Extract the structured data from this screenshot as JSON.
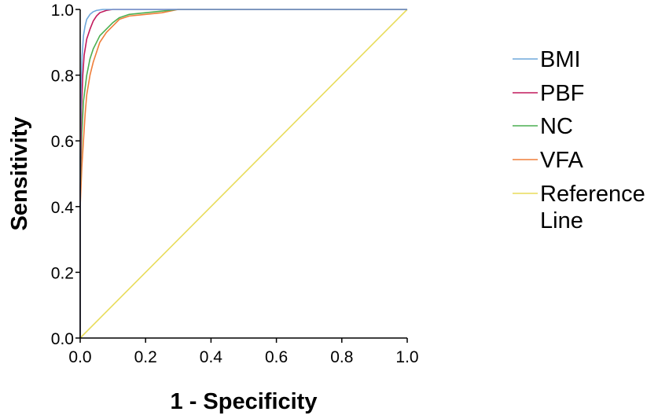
{
  "chart_data": {
    "type": "line",
    "xlabel": "1 - Specificity",
    "ylabel": "Sensitivity",
    "xlim": [
      0.0,
      1.0
    ],
    "ylim": [
      0.0,
      1.0
    ],
    "grid": false,
    "legend_position": "right",
    "x_ticks": [
      "0.0",
      "0.2",
      "0.4",
      "0.6",
      "0.8",
      "1.0"
    ],
    "y_ticks": [
      "0.0",
      "0.2",
      "0.4",
      "0.6",
      "0.8",
      "1.0"
    ],
    "series": [
      {
        "name": "BMI",
        "color": "#6fa8dc",
        "x": [
          0.0,
          0.0,
          0.003,
          0.006,
          0.01,
          0.015,
          0.02,
          0.03,
          0.04,
          0.05,
          0.07,
          0.1,
          0.2,
          0.4,
          0.65,
          1.0
        ],
        "y": [
          0.0,
          0.55,
          0.78,
          0.86,
          0.92,
          0.95,
          0.97,
          0.985,
          0.993,
          0.997,
          1.0,
          1.0,
          1.0,
          1.0,
          1.0,
          1.0
        ]
      },
      {
        "name": "PBF",
        "color": "#c2185b",
        "x": [
          0.0,
          0.0,
          0.004,
          0.008,
          0.012,
          0.02,
          0.03,
          0.04,
          0.05,
          0.06,
          0.08,
          0.1,
          0.2,
          0.4,
          0.65,
          1.0
        ],
        "y": [
          0.0,
          0.45,
          0.7,
          0.8,
          0.86,
          0.91,
          0.94,
          0.965,
          0.98,
          0.99,
          0.997,
          1.0,
          1.0,
          1.0,
          1.0,
          1.0
        ]
      },
      {
        "name": "NC",
        "color": "#4caf50",
        "x": [
          0.0,
          0.0,
          0.005,
          0.01,
          0.02,
          0.03,
          0.04,
          0.05,
          0.06,
          0.08,
          0.1,
          0.12,
          0.15,
          0.2,
          0.3,
          0.5,
          0.65,
          1.0
        ],
        "y": [
          0.0,
          0.45,
          0.62,
          0.72,
          0.8,
          0.85,
          0.88,
          0.9,
          0.92,
          0.94,
          0.96,
          0.975,
          0.985,
          0.99,
          1.0,
          1.0,
          1.0,
          1.0
        ]
      },
      {
        "name": "VFA",
        "color": "#ef7e3a",
        "x": [
          0.0,
          0.0,
          0.005,
          0.01,
          0.015,
          0.02,
          0.03,
          0.04,
          0.05,
          0.06,
          0.08,
          0.1,
          0.12,
          0.15,
          0.2,
          0.25,
          0.3,
          0.5,
          0.65,
          1.0
        ],
        "y": [
          0.0,
          0.4,
          0.52,
          0.6,
          0.68,
          0.74,
          0.8,
          0.84,
          0.87,
          0.9,
          0.93,
          0.95,
          0.97,
          0.98,
          0.985,
          0.99,
          1.0,
          1.0,
          1.0,
          1.0
        ]
      },
      {
        "name": "Reference Line",
        "color": "#e8dc5a",
        "x": [
          0.0,
          1.0
        ],
        "y": [
          0.0,
          1.0
        ]
      }
    ]
  }
}
